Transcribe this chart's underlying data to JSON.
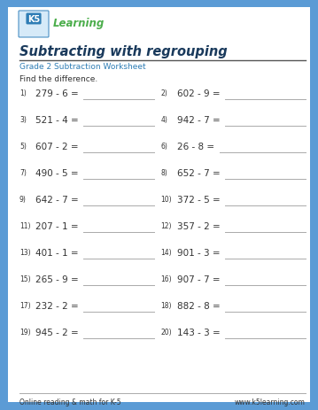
{
  "title": "Subtracting with regrouping",
  "subtitle": "Grade 2 Subtraction Worksheet",
  "instruction": "Find the difference.",
  "footer_left": "Online reading & math for K-5",
  "footer_right": "www.k5learning.com",
  "bg_color": "#5b9bd5",
  "inner_bg": "#ffffff",
  "title_color": "#1a3a5c",
  "subtitle_color": "#2e7db5",
  "text_color": "#333333",
  "line_color": "#aaaaaa",
  "problems_left": [
    "279 - 6 =",
    "521 - 4 =",
    "607 - 2 =",
    "490 - 5 =",
    "642 - 7 =",
    "207 - 1 =",
    "401 - 1 =",
    "265 - 9 =",
    "232 - 2 =",
    "945 - 2 ="
  ],
  "problems_right": [
    "602 - 9 =",
    "942 - 7 =",
    "26 - 8 =",
    "652 - 7 =",
    "372 - 5 =",
    "357 - 2 =",
    "901 - 3 =",
    "907 - 7 =",
    "882 - 8 =",
    "143 - 3 ="
  ],
  "numbers_left": [
    "1)",
    "3)",
    "5)",
    "7)",
    "9)",
    "11)",
    "13)",
    "15)",
    "17)",
    "19)"
  ],
  "numbers_right": [
    "2)",
    "4)",
    "6)",
    "8)",
    "10)",
    "12)",
    "14)",
    "16)",
    "18)",
    "20)"
  ]
}
